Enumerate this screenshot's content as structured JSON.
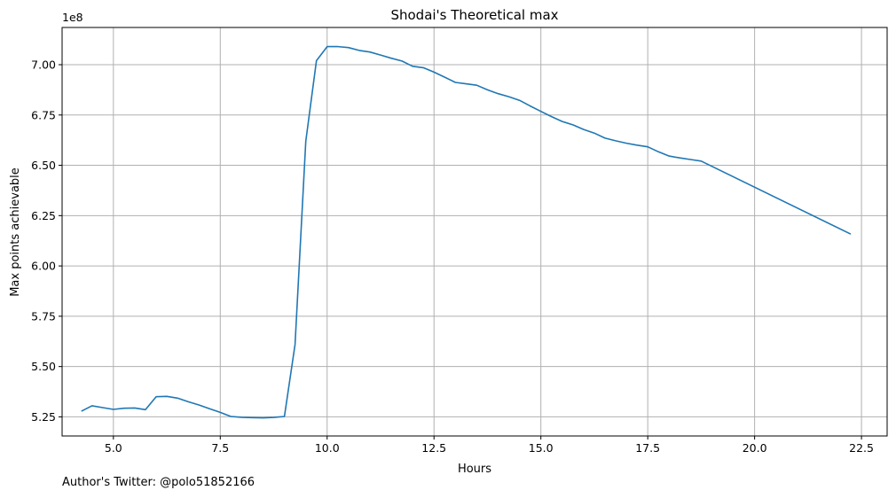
{
  "chart_data": {
    "type": "line",
    "title": "Shodai's Theoretical max",
    "xlabel": "Hours",
    "ylabel": "Max points achievable",
    "y_scale_note": "1e8",
    "xlim": [
      3.8,
      23.1
    ],
    "ylim": [
      5.155,
      7.185
    ],
    "x_ticks": [
      5.0,
      7.5,
      10.0,
      12.5,
      15.0,
      17.5,
      20.0,
      22.5
    ],
    "x_tick_labels": [
      "5.0",
      "7.5",
      "10.0",
      "12.5",
      "15.0",
      "17.5",
      "20.0",
      "22.5"
    ],
    "y_ticks": [
      5.25,
      5.5,
      5.75,
      6.0,
      6.25,
      6.5,
      6.75,
      7.0
    ],
    "y_tick_labels": [
      "5.25",
      "5.50",
      "5.75",
      "6.00",
      "6.25",
      "6.50",
      "6.75",
      "7.00"
    ],
    "grid": true,
    "line_color": "#1f77b4",
    "series": [
      {
        "x": [
          4.25,
          4.5,
          4.75,
          5.0,
          5.25,
          5.5,
          5.75,
          6.0,
          6.25,
          6.5,
          6.75,
          7.0,
          7.25,
          7.5,
          7.75,
          8.0,
          8.25,
          8.5,
          8.75,
          9.0,
          9.25,
          9.5,
          9.75,
          10.0,
          10.25,
          10.5,
          10.75,
          11.0,
          11.25,
          11.5,
          11.75,
          12.0,
          12.25,
          12.5,
          12.75,
          13.0,
          13.25,
          13.5,
          13.75,
          14.0,
          14.25,
          14.5,
          14.75,
          15.0,
          15.25,
          15.5,
          15.75,
          16.0,
          16.25,
          16.5,
          16.75,
          17.0,
          17.25,
          17.5,
          17.75,
          18.0,
          18.25,
          18.5,
          18.75,
          22.25
        ],
        "y": [
          5.278,
          5.305,
          5.296,
          5.287,
          5.293,
          5.294,
          5.286,
          5.35,
          5.352,
          5.343,
          5.325,
          5.309,
          5.29,
          5.272,
          5.252,
          5.248,
          5.246,
          5.245,
          5.247,
          5.252,
          5.61,
          6.62,
          7.02,
          7.09,
          7.09,
          7.085,
          7.071,
          7.063,
          7.048,
          7.032,
          7.018,
          6.992,
          6.985,
          6.963,
          6.938,
          6.912,
          6.905,
          6.898,
          6.875,
          6.856,
          6.841,
          6.823,
          6.795,
          6.768,
          6.742,
          6.718,
          6.701,
          6.678,
          6.66,
          6.635,
          6.622,
          6.61,
          6.6,
          6.592,
          6.567,
          6.546,
          6.537,
          6.529,
          6.521,
          6.158
        ]
      }
    ]
  },
  "footer": {
    "text": "Author's Twitter: @polo51852166"
  }
}
